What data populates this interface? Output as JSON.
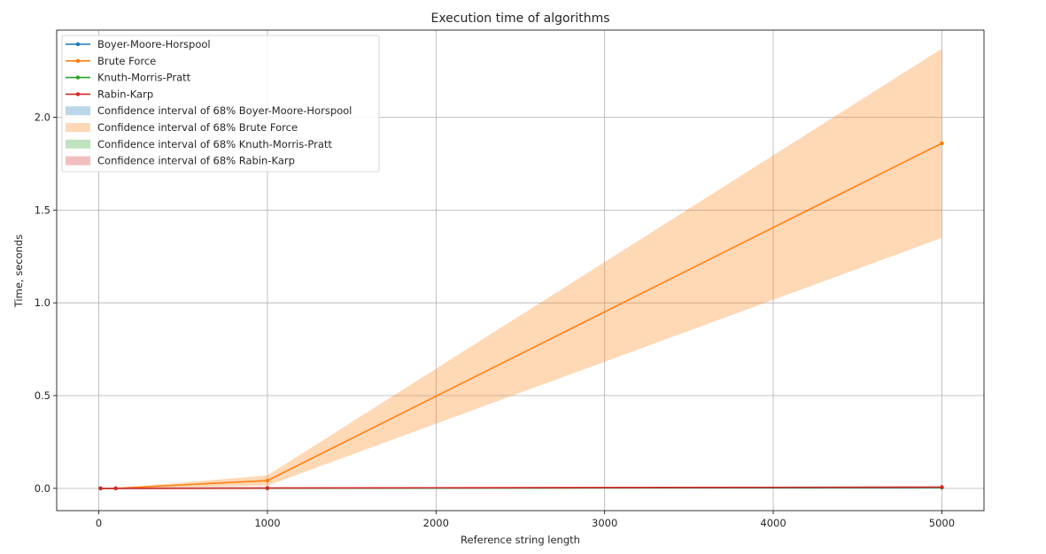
{
  "chart_data": {
    "type": "line",
    "title": "Execution time of algorithms",
    "xlabel": "Reference string length",
    "ylabel": "Time, seconds",
    "xlim": [
      -250,
      5250
    ],
    "ylim": [
      -0.12,
      2.47
    ],
    "xticks": [
      0,
      1000,
      2000,
      3000,
      4000,
      5000
    ],
    "yticks": [
      0.0,
      0.5,
      1.0,
      1.5,
      2.0
    ],
    "xtick_labels": [
      "0",
      "1000",
      "2000",
      "3000",
      "4000",
      "5000"
    ],
    "ytick_labels": [
      "0.0",
      "0.5",
      "1.0",
      "1.5",
      "2.0"
    ],
    "grid": true,
    "legend_position": "top-left",
    "x": [
      10,
      100,
      1000,
      5000
    ],
    "series": [
      {
        "name": "Boyer-Moore-Horspool",
        "color": "#1f77b4",
        "values": [
          0.0,
          0.0,
          0.001,
          0.004
        ],
        "ci_name": "Confidence interval of 68% Boyer-Moore-Horspool",
        "ci_lower": [
          0.0,
          0.0,
          0.0005,
          0.003
        ],
        "ci_upper": [
          0.0,
          0.0,
          0.0015,
          0.005
        ]
      },
      {
        "name": "Brute Force",
        "color": "#ff7f0e",
        "values": [
          0.0,
          0.0004,
          0.042,
          1.86
        ],
        "ci_name": "Confidence interval of 68% Brute Force",
        "ci_lower": [
          0.0,
          0.0002,
          0.015,
          1.35
        ],
        "ci_upper": [
          0.0,
          0.0008,
          0.07,
          2.37
        ]
      },
      {
        "name": "Knuth-Morris-Pratt",
        "color": "#2ca02c",
        "values": [
          0.0,
          0.0,
          0.001,
          0.005
        ],
        "ci_name": "Confidence interval of 68% Knuth-Morris-Pratt",
        "ci_lower": [
          0.0,
          0.0,
          0.0005,
          0.004
        ],
        "ci_upper": [
          0.0,
          0.0,
          0.0015,
          0.006
        ]
      },
      {
        "name": "Rabin-Karp",
        "color": "#d62728",
        "values": [
          0.0,
          0.0002,
          0.002,
          0.007
        ],
        "ci_name": "Confidence interval of 68% Rabin-Karp",
        "ci_lower": [
          0.0,
          0.0001,
          0.001,
          0.005
        ],
        "ci_upper": [
          0.0,
          0.0003,
          0.003,
          0.009
        ]
      }
    ]
  }
}
